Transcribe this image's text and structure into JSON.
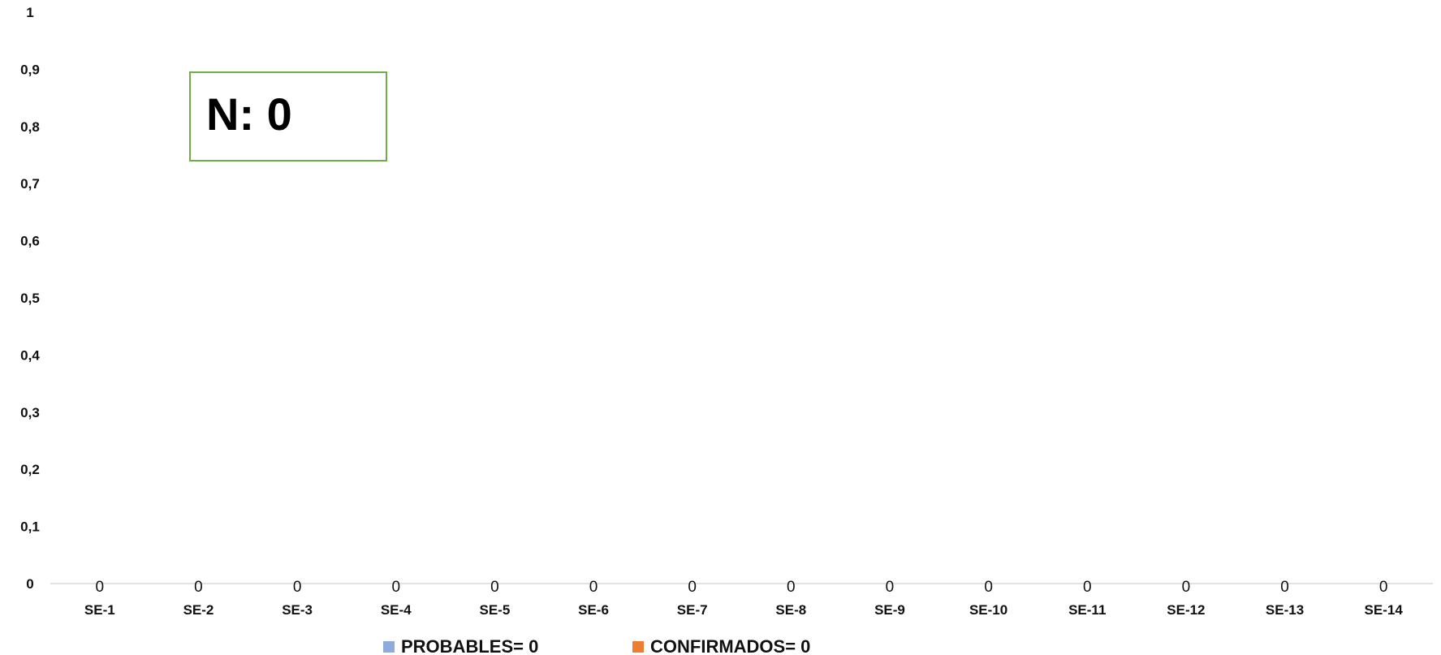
{
  "chart_data": {
    "type": "bar",
    "categories": [
      "SE-1",
      "SE-2",
      "SE-3",
      "SE-4",
      "SE-5",
      "SE-6",
      "SE-7",
      "SE-8",
      "SE-9",
      "SE-10",
      "SE-11",
      "SE-12",
      "SE-13",
      "SE-14"
    ],
    "series": [
      {
        "name": "PROBABLES= 0",
        "color": "#8FAADC",
        "values": [
          0,
          0,
          0,
          0,
          0,
          0,
          0,
          0,
          0,
          0,
          0,
          0,
          0,
          0
        ]
      },
      {
        "name": "CONFIRMADOS= 0",
        "color": "#ED7D31",
        "values": [
          0,
          0,
          0,
          0,
          0,
          0,
          0,
          0,
          0,
          0,
          0,
          0,
          0,
          0
        ]
      }
    ],
    "data_labels": [
      "0",
      "0",
      "0",
      "0",
      "0",
      "0",
      "0",
      "0",
      "0",
      "0",
      "0",
      "0",
      "0",
      "0"
    ],
    "y_ticks": [
      "0",
      "0,1",
      "0,2",
      "0,3",
      "0,4",
      "0,5",
      "0,6",
      "0,7",
      "0,8",
      "0,9",
      "1"
    ],
    "ylim": [
      0,
      1
    ],
    "grid": false,
    "legend": "bottom",
    "annotation": "N: 0",
    "annotation_border_color": "#70AD47"
  }
}
